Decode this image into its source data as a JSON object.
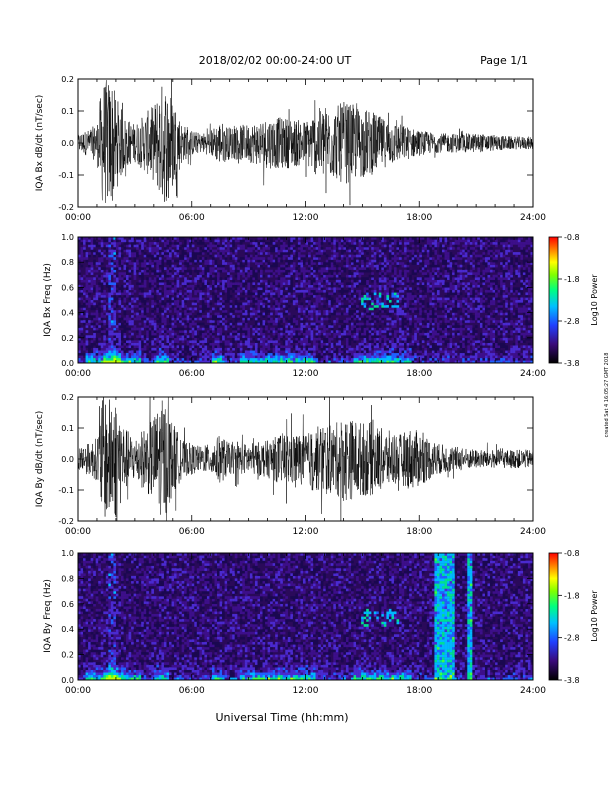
{
  "header": {
    "date_range": "2018/02/02  00:00-24:00 UT",
    "page": "Page 1/1"
  },
  "footer": {
    "x_axis_title": "Universal Time (hh:mm)"
  },
  "side_note": "created Sat 4 16:05:27 GMT 2018",
  "colors": {
    "trace": "#000000",
    "spectrogram_background": "#2a0a5a",
    "colorbar_stops": [
      "#000000",
      "#3a0a7a",
      "#2040ff",
      "#00c0ff",
      "#00ff80",
      "#80ff00",
      "#ffff00",
      "#ff8000",
      "#ff0000"
    ]
  },
  "chart_data": [
    {
      "type": "line",
      "id": "bx-dbdt",
      "ylabel": "IQA Bx dB/dt (nT/sec)",
      "x_ticks": [
        "00:00",
        "06:00",
        "12:00",
        "18:00",
        "24:00"
      ],
      "y_ticks": [
        "0.2",
        "0.1",
        "0.0",
        "-0.1",
        "-0.2"
      ],
      "xlim": [
        0,
        24
      ],
      "ylim": [
        -0.2,
        0.2
      ],
      "envelope": {
        "hours": [
          0,
          0.5,
          1,
          1.3,
          1.5,
          1.8,
          2,
          2.5,
          3,
          3.5,
          4,
          4.5,
          5,
          5.5,
          6,
          6.5,
          7,
          7.5,
          8,
          9,
          10,
          11,
          12,
          12.5,
          13,
          13.5,
          14,
          14.5,
          15,
          15.5,
          16,
          16.5,
          17,
          17.5,
          18,
          19,
          20,
          21,
          22,
          23,
          24
        ],
        "amplitude": [
          0.03,
          0.04,
          0.06,
          0.2,
          0.2,
          0.2,
          0.15,
          0.08,
          0.06,
          0.09,
          0.12,
          0.2,
          0.15,
          0.06,
          0.04,
          0.03,
          0.04,
          0.07,
          0.05,
          0.06,
          0.08,
          0.08,
          0.07,
          0.1,
          0.12,
          0.11,
          0.13,
          0.12,
          0.11,
          0.1,
          0.08,
          0.07,
          0.06,
          0.05,
          0.04,
          0.03,
          0.03,
          0.03,
          0.025,
          0.02,
          0.02
        ]
      }
    },
    {
      "type": "heatmap",
      "id": "bx-spectrogram",
      "ylabel": "IQA Bx Freq (Hz)",
      "x_ticks": [
        "00:00",
        "06:00",
        "12:00",
        "18:00",
        "24:00"
      ],
      "y_ticks": [
        "1.0",
        "0.8",
        "0.6",
        "0.4",
        "0.2",
        "0.0"
      ],
      "xlim": [
        0,
        24
      ],
      "ylim": [
        0,
        1.0
      ],
      "colorbar": {
        "label": "Log10 Power",
        "ticks": [
          "-0.8",
          "-1.8",
          "-2.8",
          "-3.8"
        ],
        "range": [
          -3.8,
          -0.8
        ]
      }
    },
    {
      "type": "line",
      "id": "by-dbdt",
      "ylabel": "IQA By dB/dt (nT/sec)",
      "x_ticks": [
        "00:00",
        "06:00",
        "12:00",
        "18:00",
        "24:00"
      ],
      "y_ticks": [
        "0.2",
        "0.1",
        "0.0",
        "-0.1",
        "-0.2"
      ],
      "xlim": [
        0,
        24
      ],
      "ylim": [
        -0.2,
        0.2
      ],
      "envelope": {
        "hours": [
          0,
          0.5,
          1,
          1.3,
          1.5,
          1.8,
          2,
          2.5,
          3,
          3.5,
          4,
          4.5,
          5,
          5.5,
          6,
          6.5,
          7,
          7.5,
          8,
          9,
          10,
          11,
          12,
          12.5,
          13,
          13.5,
          14,
          14.5,
          15,
          15.5,
          16,
          16.5,
          17,
          17.5,
          18,
          19,
          20,
          21,
          22,
          23,
          24
        ],
        "amplitude": [
          0.04,
          0.05,
          0.07,
          0.2,
          0.2,
          0.2,
          0.2,
          0.1,
          0.07,
          0.1,
          0.14,
          0.2,
          0.12,
          0.06,
          0.05,
          0.04,
          0.05,
          0.08,
          0.05,
          0.05,
          0.06,
          0.09,
          0.08,
          0.1,
          0.12,
          0.11,
          0.14,
          0.13,
          0.12,
          0.12,
          0.1,
          0.09,
          0.08,
          0.1,
          0.09,
          0.05,
          0.04,
          0.03,
          0.03,
          0.03,
          0.03
        ]
      }
    },
    {
      "type": "heatmap",
      "id": "by-spectrogram",
      "ylabel": "IQA By Freq (Hz)",
      "x_ticks": [
        "00:00",
        "06:00",
        "12:00",
        "18:00",
        "24:00"
      ],
      "y_ticks": [
        "1.0",
        "0.8",
        "0.6",
        "0.4",
        "0.2",
        "0.0"
      ],
      "xlim": [
        0,
        24
      ],
      "ylim": [
        0,
        1.0
      ],
      "colorbar": {
        "label": "Log10 Power",
        "ticks": [
          "-0.8",
          "-1.8",
          "-2.8",
          "-3.8"
        ],
        "range": [
          -3.8,
          -0.8
        ]
      }
    }
  ]
}
